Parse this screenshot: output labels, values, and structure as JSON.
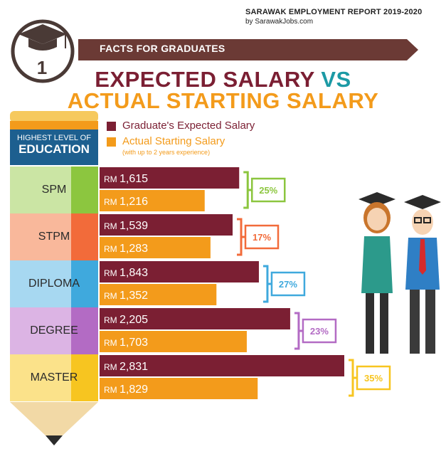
{
  "header": {
    "report_title": "SARAWAK EMPLOYMENT REPORT 2019-2020",
    "report_source": "by SarawakJobs.com",
    "ribbon_text": "FACTS FOR GRADUATES",
    "badge_number": "1",
    "title_line1_a": "EXPECTED SALARY ",
    "title_line1_vs": "VS",
    "title_line2": "ACTUAL STARTING SALARY"
  },
  "pencil_header": {
    "line1": "HIGHEST LEVEL OF",
    "line2": "EDUCATION"
  },
  "colors": {
    "expected": "#7b1f33",
    "actual": "#f39b1b",
    "ribbon": "#6b3a35",
    "vs": "#1c9aa5"
  },
  "chart_data": {
    "type": "bar",
    "orientation": "horizontal",
    "value_prefix": "RM",
    "categories": [
      "SPM",
      "STPM",
      "DIPLOMA",
      "DEGREE",
      "MASTER"
    ],
    "series": [
      {
        "name": "Graduate's Expected Salary",
        "values": [
          1615,
          1539,
          1843,
          2205,
          2831
        ],
        "labels": [
          "1,615",
          "1,539",
          "1,843",
          "2,205",
          "2,831"
        ]
      },
      {
        "name": "Actual Starting Salary",
        "note": "(with up to 2 years experience)",
        "values": [
          1216,
          1283,
          1352,
          1703,
          1829
        ],
        "labels": [
          "1,216",
          "1,283",
          "1,352",
          "1,703",
          "1,829"
        ]
      }
    ],
    "gap_labels": [
      "25%",
      "17%",
      "27%",
      "23%",
      "35%"
    ],
    "category_colors": [
      "#8cc63f",
      "#f26b3a",
      "#3fa9dd",
      "#b36bc4",
      "#f7c520"
    ],
    "category_bg_colors": [
      "#cbe5a4",
      "#f9b89b",
      "#a7d8f1",
      "#dcb4e4",
      "#fbe28a"
    ]
  }
}
